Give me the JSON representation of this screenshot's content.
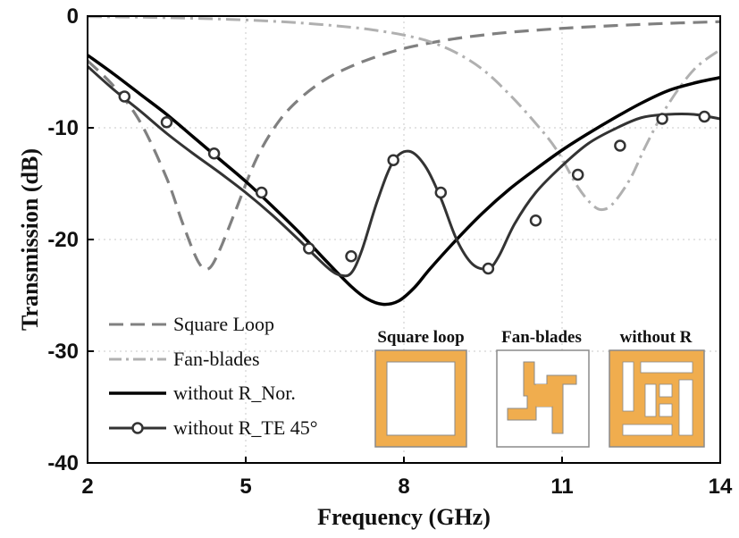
{
  "chart_data": {
    "type": "line",
    "title": "",
    "xlabel": "Frequency (GHz)",
    "ylabel": "Transmission (dB)",
    "xlim": [
      2,
      14
    ],
    "ylim": [
      -40,
      0
    ],
    "xticks": [
      2,
      5,
      8,
      11,
      14
    ],
    "yticks": [
      0,
      -10,
      -20,
      -30,
      -40
    ],
    "xtick_labels": [
      "2",
      "5",
      "8",
      "11",
      "14"
    ],
    "ytick_labels": [
      "0",
      "-10",
      "-20",
      "-30",
      "-40"
    ],
    "grid": true,
    "legend_position": "bottom-left",
    "series": [
      {
        "name": "Square Loop",
        "color": "#808080",
        "style": "dashed",
        "x": [
          2,
          2.5,
          3,
          3.5,
          3.8,
          4.1,
          4.3,
          4.5,
          4.8,
          5.2,
          5.6,
          6,
          6.5,
          7,
          7.5,
          8,
          8.5,
          9,
          9.5,
          10,
          11,
          12,
          13,
          14
        ],
        "y": [
          -4,
          -6.3,
          -9.5,
          -14.5,
          -18.5,
          -22,
          -22.6,
          -21,
          -17.5,
          -12.8,
          -9.6,
          -7.5,
          -5.7,
          -4.5,
          -3.6,
          -2.9,
          -2.4,
          -2,
          -1.7,
          -1.45,
          -1.1,
          -0.85,
          -0.65,
          -0.5
        ]
      },
      {
        "name": "Fan-blades",
        "color": "#b0b0b0",
        "style": "dashdot",
        "x": [
          2,
          3,
          4,
          5,
          6,
          7,
          7.5,
          8,
          8.5,
          9,
          9.5,
          10,
          10.5,
          10.9,
          11.3,
          11.6,
          11.8,
          12,
          12.3,
          12.6,
          13,
          13.5,
          14
        ],
        "y": [
          -0.05,
          -0.1,
          -0.2,
          -0.35,
          -0.6,
          -1,
          -1.3,
          -1.7,
          -2.3,
          -3.3,
          -4.8,
          -7,
          -9.6,
          -12,
          -15.3,
          -17,
          -17.3,
          -16.6,
          -14.5,
          -11.5,
          -8,
          -4.8,
          -3
        ]
      },
      {
        "name": "without R_Nor.",
        "color": "#000000",
        "style": "solid",
        "x": [
          2,
          2.5,
          3,
          3.5,
          4,
          4.5,
          5,
          5.5,
          6,
          6.5,
          7,
          7.3,
          7.6,
          7.9,
          8.2,
          8.5,
          9,
          9.5,
          10,
          10.5,
          11,
          11.5,
          12,
          12.5,
          13,
          13.5,
          14
        ],
        "y": [
          -3.5,
          -5.2,
          -7,
          -8.8,
          -10.8,
          -12.8,
          -14.8,
          -17,
          -19.3,
          -21.8,
          -24.2,
          -25.3,
          -25.8,
          -25.5,
          -24.3,
          -22.6,
          -20,
          -17.6,
          -15.5,
          -13.7,
          -12,
          -10.5,
          -9.1,
          -7.8,
          -6.7,
          -6,
          -5.5
        ]
      },
      {
        "name": "without R_TE 45°",
        "color": "#333333",
        "style": "solid-marker",
        "x": [
          2,
          2.5,
          3,
          3.5,
          4,
          4.5,
          5,
          5.5,
          6,
          6.3,
          6.6,
          6.8,
          7.0,
          7.2,
          7.5,
          7.8,
          8.1,
          8.4,
          8.7,
          9,
          9.3,
          9.6,
          9.8,
          10.1,
          10.5,
          11,
          11.5,
          12,
          12.5,
          13,
          13.5,
          14
        ],
        "y": [
          -4.5,
          -6.6,
          -8.5,
          -10.5,
          -12.3,
          -14,
          -15.8,
          -17.8,
          -20,
          -21.4,
          -22.7,
          -23.2,
          -23,
          -21,
          -16.5,
          -13,
          -12.1,
          -13.4,
          -16.3,
          -20,
          -22.2,
          -22.6,
          -21.5,
          -18.6,
          -15.8,
          -13.4,
          -11.4,
          -10.1,
          -9.1,
          -8.8,
          -8.8,
          -9.2
        ]
      }
    ],
    "markers": {
      "series": "without R_TE 45°",
      "x": [
        2.7,
        3.5,
        4.4,
        5.3,
        6.2,
        7.0,
        7.8,
        8.7,
        9.6,
        10.5,
        11.3,
        12.1,
        12.9,
        13.7
      ],
      "y": [
        -7.2,
        -9.5,
        -12.3,
        -15.8,
        -20.8,
        -21.5,
        -12.9,
        -15.8,
        -22.6,
        -18.3,
        -14.2,
        -11.6,
        -9.2,
        -9
      ]
    },
    "legend": [
      "Square Loop",
      "Fan-blades",
      "without R_Nor.",
      "without R_TE 45°"
    ],
    "insets": [
      {
        "title": "Square loop",
        "icon": "square-loop-icon"
      },
      {
        "title": "Fan-blades",
        "icon": "fan-blades-icon"
      },
      {
        "title": "without R",
        "icon": "without-r-icon"
      }
    ],
    "inset_color": "#f0ad4e"
  }
}
